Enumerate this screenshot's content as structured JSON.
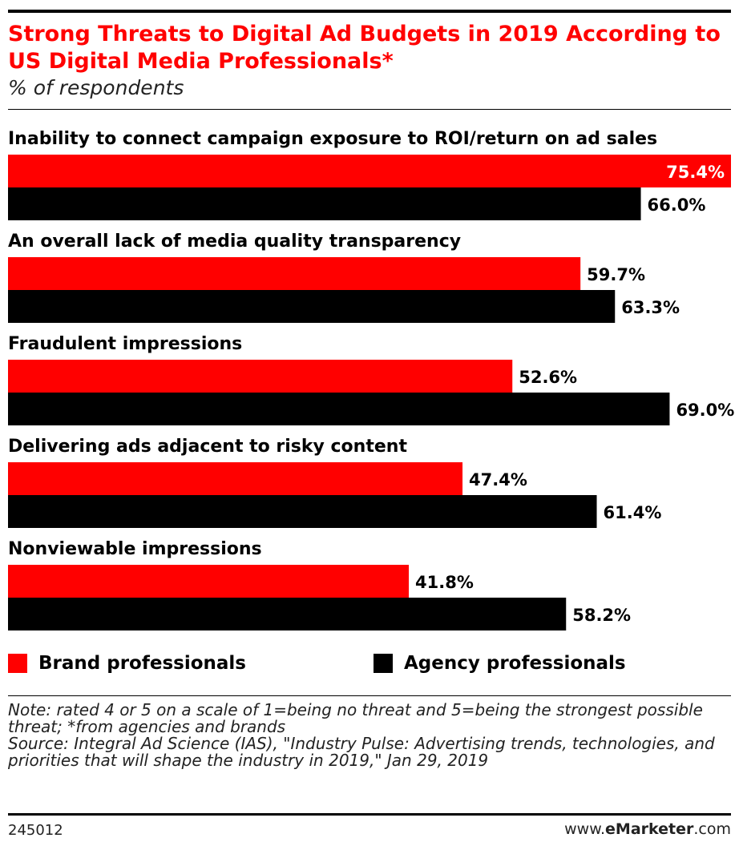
{
  "header": {
    "title": "Strong Threats to Digital Ad Budgets in 2019 According to US Digital Media Professionals*",
    "subtitle": "% of respondents"
  },
  "chart_data": {
    "type": "bar",
    "orientation": "horizontal",
    "categories": [
      "Inability to connect campaign exposure to ROI/return on ad sales",
      "An overall lack of media quality transparency",
      "Fraudulent impressions",
      "Delivering ads adjacent to risky content",
      "Nonviewable impressions"
    ],
    "series": [
      {
        "name": "Brand professionals",
        "color": "#ff0000",
        "values": [
          75.4,
          59.7,
          52.6,
          47.4,
          41.8
        ],
        "labels": [
          "75.4%",
          "59.7%",
          "52.6%",
          "47.4%",
          "41.8%"
        ]
      },
      {
        "name": "Agency professionals",
        "color": "#000000",
        "values": [
          66.0,
          63.3,
          69.0,
          61.4,
          58.2
        ],
        "labels": [
          "66.0%",
          "63.3%",
          "69.0%",
          "61.4%",
          "58.2%"
        ]
      }
    ],
    "xlim": [
      0,
      75.4
    ],
    "grid": false,
    "legend_position": "bottom"
  },
  "legend": {
    "brand": "Brand professionals",
    "agency": "Agency professionals",
    "brand_color": "#ff0000",
    "agency_color": "#000000"
  },
  "notes": {
    "note": "Note: rated 4 or 5 on a scale of 1=being no threat and 5=being the strongest possible threat; *from agencies and brands",
    "source": "Source: Integral Ad Science (IAS), \"Industry Pulse: Advertising trends, technologies, and priorities that will shape the industry in 2019,\" Jan 29, 2019"
  },
  "footer": {
    "chart_id": "245012",
    "brand_prefix": "www.",
    "brand_name": "eMarketer",
    "brand_suffix": ".com"
  }
}
